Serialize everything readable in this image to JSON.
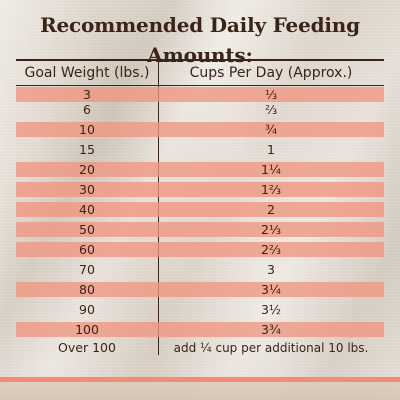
{
  "title": "Recommended Daily Feeding Amounts:",
  "table": {
    "headers": [
      "Goal Weight (lbs.)",
      "Cups Per Day (Approx.)"
    ],
    "rows": [
      {
        "weight": "3",
        "cups": "⅓"
      },
      {
        "weight": "6",
        "cups": "⅔"
      },
      {
        "weight": "10",
        "cups": "¾"
      },
      {
        "weight": "15",
        "cups": "1"
      },
      {
        "weight": "20",
        "cups": "1¼"
      },
      {
        "weight": "30",
        "cups": "1⅔"
      },
      {
        "weight": "40",
        "cups": "2"
      },
      {
        "weight": "50",
        "cups": "2⅓"
      },
      {
        "weight": "60",
        "cups": "2⅔"
      },
      {
        "weight": "70",
        "cups": "3"
      },
      {
        "weight": "80",
        "cups": "3¼"
      },
      {
        "weight": "90",
        "cups": "3½"
      },
      {
        "weight": "100",
        "cups": "3¾"
      },
      {
        "weight": "Over 100",
        "cups": "add ¼ cup per additional 10 lbs."
      }
    ]
  },
  "colors": {
    "text": "#3a2417",
    "band": "#f0a08c",
    "footer_band": "#f08c78",
    "background": "#e6ddd2"
  }
}
